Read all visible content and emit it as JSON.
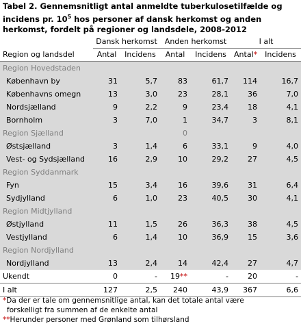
{
  "title": {
    "line1": "Tabel 2. Gennemsnitligt antal anmeldte tuberkulosetilfælde og",
    "line2_pre": "incidens pr. 10",
    "line2_sup": "5",
    "line2_post": " hos personer af dansk herkomst og anden",
    "line3": "herkomst, fordelt på regioner og landsdele, 2008-2012"
  },
  "header": {
    "group1": "Dansk herkomst",
    "group2": "Anden herkomst",
    "group3": "I alt",
    "col_region": "Region og landsdel",
    "antal": "Antal",
    "incidens": "Incidens",
    "asterisk": "*"
  },
  "rows": [
    {
      "region": "Region Hovedstaden"
    },
    {
      "name": "København by",
      "v": [
        "31",
        "5,7",
        "83",
        "61,7",
        "114",
        "16,7"
      ]
    },
    {
      "name": "Københavns omegn",
      "v": [
        "13",
        "3,0",
        "23",
        "28,1",
        "36",
        "7,0"
      ]
    },
    {
      "name": "Nordsjælland",
      "v": [
        "9",
        "2,2",
        "9",
        "23,4",
        "18",
        "4,1"
      ]
    },
    {
      "name": "Bornholm",
      "v": [
        "3",
        "7,0",
        "1",
        "34,7",
        "3",
        "8,1"
      ]
    },
    {
      "region": "Region Sjælland",
      "v": [
        "",
        "",
        "0",
        "",
        "",
        ""
      ]
    },
    {
      "name": "Østsjælland",
      "v": [
        "3",
        "1,4",
        "6",
        "33,1",
        "9",
        "4,0"
      ]
    },
    {
      "name": "Vest- og Sydsjælland",
      "v": [
        "16",
        "2,9",
        "10",
        "29,2",
        "27",
        "4,5"
      ]
    },
    {
      "region": "Region Syddanmark"
    },
    {
      "name": "Fyn",
      "v": [
        "15",
        "3,4",
        "16",
        "39,6",
        "31",
        "6,4"
      ]
    },
    {
      "name": "Sydjylland",
      "v": [
        "6",
        "1,0",
        "23",
        "40,5",
        "30",
        "4,1"
      ]
    },
    {
      "region": "Region Midtjylland"
    },
    {
      "name": "Østjylland",
      "v": [
        "11",
        "1,5",
        "26",
        "36,3",
        "38",
        "4,5"
      ]
    },
    {
      "name": "Vestjylland",
      "v": [
        "6",
        "1,4",
        "10",
        "36,9",
        "15",
        "3,6"
      ]
    },
    {
      "region": "Region Nordjylland"
    },
    {
      "name": "Nordjylland",
      "v": [
        "13",
        "2,4",
        "14",
        "42,4",
        "27",
        "4,7"
      ]
    }
  ],
  "ukendt": {
    "name": "Ukendt",
    "v": [
      "0",
      "-",
      "19",
      "-",
      "20",
      "-"
    ],
    "mark": "**"
  },
  "total": {
    "name": "I alt",
    "v": [
      "127",
      "2,5",
      "240",
      "43,9",
      "367",
      "6,6"
    ]
  },
  "notes": {
    "n1_mark": "*",
    "n1_text": "Da der er tale om gennemsnitlige antal, kan det totale antal være",
    "n1_text2": "forskelligt fra summen af de enkelte antal",
    "n2_mark": "**",
    "n2_text": "Herunder personer med Grønland som tilhørsland"
  }
}
